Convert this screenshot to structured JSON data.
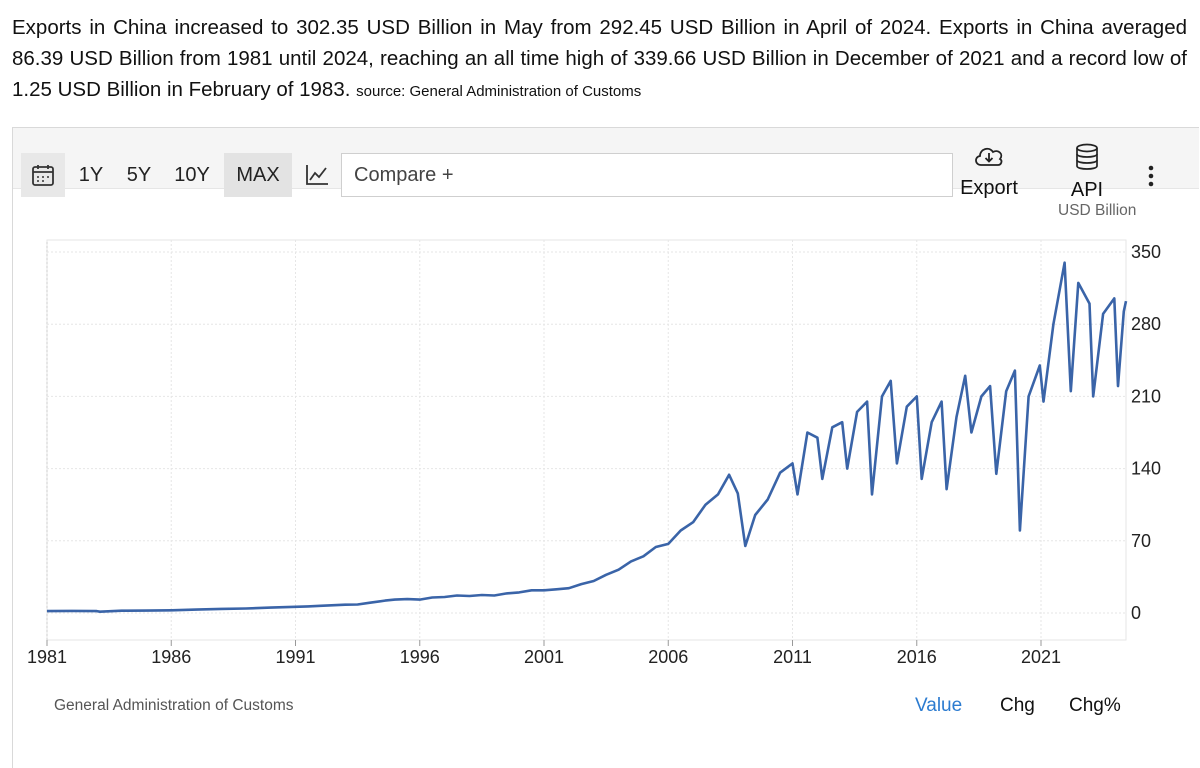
{
  "summary": {
    "text": "Exports in China increased to 302.35 USD Billion in May from 292.45 USD Billion in April of 2024. Exports in China averaged 86.39 USD Billion from 1981 until 2024, reaching an all time high of 339.66 USD Billion in December of 2021 and a record low of 1.25 USD Billion in February of 1983.",
    "source": "source: General Administration of Customs"
  },
  "toolbar": {
    "calendar_icon": "calendar-icon",
    "ranges": [
      "1Y",
      "5Y",
      "10Y",
      "MAX"
    ],
    "active_range": "MAX",
    "chart_type_icon": "line-chart-icon",
    "compare_placeholder": "Compare +",
    "export_label": "Export",
    "export_icon": "cloud-download-icon",
    "api_label": "API",
    "api_icon": "database-icon",
    "more_icon": "vertical-dots-icon"
  },
  "footer": {
    "source": "General Administration of Customs",
    "tabs": [
      "Value",
      "Chg",
      "Chg%"
    ],
    "active_tab": "Value"
  },
  "colors": {
    "series": "#3a64a8",
    "active_tab": "#2b7bd0",
    "grid": "#e6e6e6"
  },
  "chart_data": {
    "type": "line",
    "title": "",
    "unit_label": "USD Billion",
    "xlabel": "",
    "ylabel": "USD Billion",
    "xlim": [
      1981.0,
      2024.42
    ],
    "ylim": [
      -15,
      350
    ],
    "y_ticks": [
      0,
      70,
      140,
      210,
      280,
      350
    ],
    "x_ticks": [
      "1981",
      "1986",
      "1991",
      "1996",
      "2001",
      "2006",
      "2011",
      "2016",
      "2021"
    ],
    "x_tick_values": [
      1981,
      1986,
      1991,
      1996,
      2001,
      2006,
      2011,
      2016,
      2021
    ],
    "grid": true,
    "y_axis_position": "right",
    "series": [
      {
        "name": "Exports",
        "points": [
          [
            1981.0,
            1.8
          ],
          [
            1982.0,
            2.0
          ],
          [
            1983.0,
            1.8
          ],
          [
            1983.13,
            1.25
          ],
          [
            1984.0,
            2.2
          ],
          [
            1985.0,
            2.3
          ],
          [
            1986.0,
            2.6
          ],
          [
            1987.0,
            3.3
          ],
          [
            1988.0,
            4.0
          ],
          [
            1989.0,
            4.4
          ],
          [
            1990.0,
            5.2
          ],
          [
            1991.0,
            6.0
          ],
          [
            1991.5,
            6.4
          ],
          [
            1992.0,
            7.0
          ],
          [
            1993.0,
            8.0
          ],
          [
            1993.5,
            8.2
          ],
          [
            1994.0,
            10.0
          ],
          [
            1994.6,
            12.0
          ],
          [
            1995.0,
            13.0
          ],
          [
            1995.5,
            13.5
          ],
          [
            1996.0,
            13.0
          ],
          [
            1996.5,
            15.0
          ],
          [
            1997.0,
            15.5
          ],
          [
            1997.5,
            17.0
          ],
          [
            1998.0,
            16.5
          ],
          [
            1998.5,
            17.5
          ],
          [
            1999.0,
            17.0
          ],
          [
            1999.5,
            19.0
          ],
          [
            2000.0,
            20.0
          ],
          [
            2000.5,
            22.0
          ],
          [
            2001.0,
            22.0
          ],
          [
            2001.5,
            23.0
          ],
          [
            2002.0,
            24.0
          ],
          [
            2002.5,
            28.0
          ],
          [
            2003.0,
            31.0
          ],
          [
            2003.5,
            37.0
          ],
          [
            2004.0,
            42.0
          ],
          [
            2004.5,
            50.0
          ],
          [
            2005.0,
            55.0
          ],
          [
            2005.5,
            64.0
          ],
          [
            2006.0,
            67.0
          ],
          [
            2006.5,
            80.0
          ],
          [
            2007.0,
            88.0
          ],
          [
            2007.5,
            105.0
          ],
          [
            2008.0,
            115.0
          ],
          [
            2008.45,
            134.0
          ],
          [
            2008.8,
            116.0
          ],
          [
            2009.1,
            65.0
          ],
          [
            2009.5,
            95.0
          ],
          [
            2010.0,
            110.0
          ],
          [
            2010.5,
            136.0
          ],
          [
            2011.0,
            145.0
          ],
          [
            2011.2,
            115.0
          ],
          [
            2011.6,
            175.0
          ],
          [
            2012.0,
            170.0
          ],
          [
            2012.2,
            130.0
          ],
          [
            2012.6,
            180.0
          ],
          [
            2013.0,
            185.0
          ],
          [
            2013.2,
            140.0
          ],
          [
            2013.6,
            195.0
          ],
          [
            2014.0,
            205.0
          ],
          [
            2014.2,
            115.0
          ],
          [
            2014.6,
            210.0
          ],
          [
            2014.95,
            225.0
          ],
          [
            2015.2,
            145.0
          ],
          [
            2015.6,
            200.0
          ],
          [
            2016.0,
            210.0
          ],
          [
            2016.2,
            130.0
          ],
          [
            2016.6,
            185.0
          ],
          [
            2017.0,
            205.0
          ],
          [
            2017.2,
            120.0
          ],
          [
            2017.6,
            190.0
          ],
          [
            2017.95,
            230.0
          ],
          [
            2018.2,
            175.0
          ],
          [
            2018.6,
            210.0
          ],
          [
            2018.95,
            220.0
          ],
          [
            2019.2,
            135.0
          ],
          [
            2019.6,
            215.0
          ],
          [
            2019.95,
            235.0
          ],
          [
            2020.15,
            80.0
          ],
          [
            2020.5,
            210.0
          ],
          [
            2020.95,
            240.0
          ],
          [
            2021.1,
            205.0
          ],
          [
            2021.5,
            280.0
          ],
          [
            2021.95,
            339.66
          ],
          [
            2022.2,
            215.0
          ],
          [
            2022.5,
            320.0
          ],
          [
            2022.95,
            300.0
          ],
          [
            2023.1,
            210.0
          ],
          [
            2023.5,
            290.0
          ],
          [
            2023.95,
            305.0
          ],
          [
            2024.1,
            220.0
          ],
          [
            2024.33,
            292.45
          ],
          [
            2024.42,
            302.35
          ]
        ]
      }
    ]
  }
}
